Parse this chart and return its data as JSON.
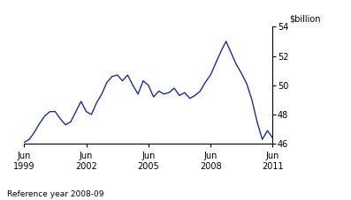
{
  "ylabel": "$billion",
  "xlabel_note": "Reference year 2008-09",
  "line_color": "#1F2E8C",
  "line_width": 1.0,
  "ylim": [
    46,
    54
  ],
  "yticks": [
    46,
    48,
    50,
    52,
    54
  ],
  "xtick_labels": [
    "Jun\n1999",
    "Jun\n2002",
    "Jun\n2005",
    "Jun\n2008",
    "Jun\n2011"
  ],
  "xtick_positions": [
    0,
    12,
    24,
    36,
    48
  ],
  "x_data": [
    0,
    1,
    2,
    3,
    4,
    5,
    6,
    7,
    8,
    9,
    10,
    11,
    12,
    13,
    14,
    15,
    16,
    17,
    18,
    19,
    20,
    21,
    22,
    23,
    24,
    25,
    26,
    27,
    28,
    29,
    30,
    31,
    32,
    33,
    34,
    35,
    36,
    37,
    38,
    39,
    40,
    41,
    42,
    43,
    44,
    45,
    46,
    47,
    48
  ],
  "y_data": [
    46.1,
    46.3,
    46.8,
    47.4,
    47.9,
    48.2,
    48.2,
    47.7,
    47.3,
    47.5,
    48.2,
    48.9,
    48.2,
    48.0,
    48.8,
    49.4,
    50.2,
    50.6,
    50.7,
    50.3,
    50.7,
    50.0,
    49.4,
    50.3,
    50.0,
    49.2,
    49.6,
    49.4,
    49.5,
    49.8,
    49.3,
    49.5,
    49.1,
    49.3,
    49.6,
    50.2,
    50.7,
    51.5,
    52.3,
    53.0,
    52.2,
    51.4,
    50.8,
    50.1,
    49.0,
    47.5,
    46.3,
    46.9,
    46.4
  ]
}
